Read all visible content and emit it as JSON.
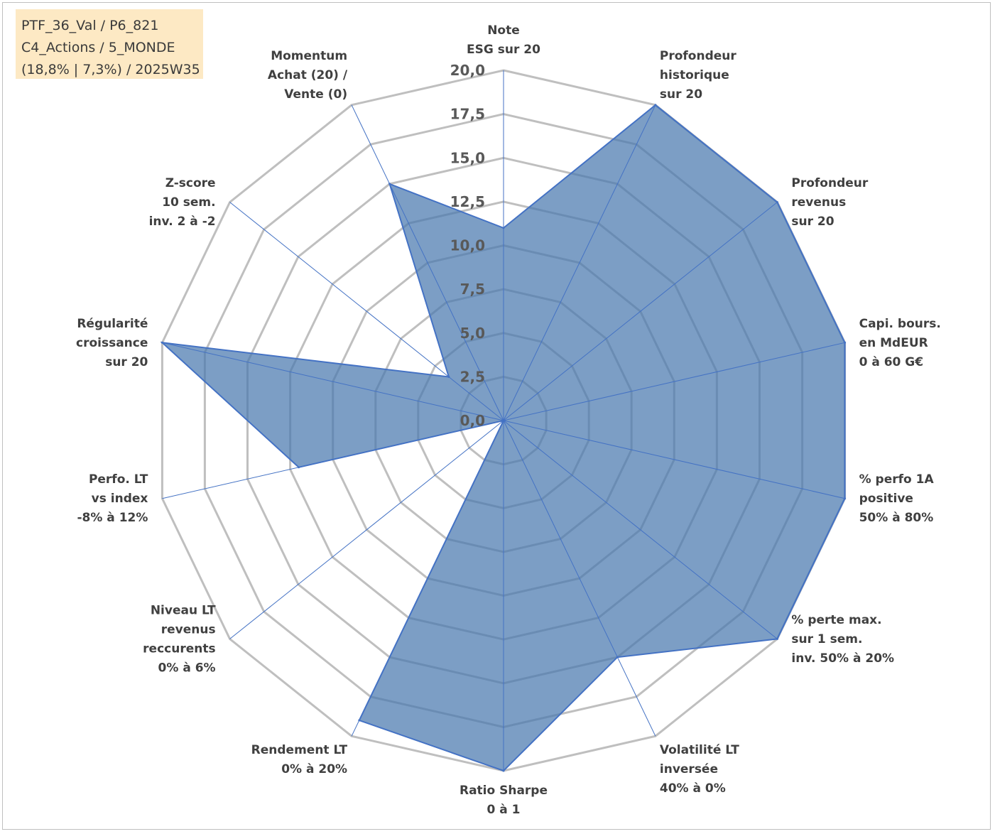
{
  "info_box": {
    "lines": [
      "PTF_36_Val / P6_821",
      "C4_Actions / 5_MONDE",
      "(18,8% | 7,3%) / 2025W35"
    ]
  },
  "chart_data": {
    "type": "radar",
    "title": "",
    "range": [
      0,
      20
    ],
    "tick_labels": [
      "0,0",
      "2,5",
      "5,0",
      "7,5",
      "10,0",
      "12,5",
      "15,0",
      "17,5",
      "20,0"
    ],
    "axes": [
      [
        "Note",
        "ESG sur 20"
      ],
      [
        "Profondeur",
        "historique",
        "sur 20"
      ],
      [
        "Profondeur",
        "revenus",
        "sur 20"
      ],
      [
        "Capi. bours.",
        "en MdEUR",
        "0 à 60 G€"
      ],
      [
        "% perfo 1A",
        "positive",
        "50% à 80%"
      ],
      [
        "% perte max.",
        "sur 1 sem.",
        "inv. 50% à 20%"
      ],
      [
        "Volatilité LT",
        "inversée",
        "40% à 0%"
      ],
      [
        "Ratio Sharpe",
        "0 à 1"
      ],
      [
        "Rendement LT",
        "0% à 20%"
      ],
      [
        "Niveau LT",
        "revenus",
        "reccurents",
        "0% à 6%"
      ],
      [
        "Perfo. LT",
        "vs index",
        "-8% à 12%"
      ],
      [
        "Régularité",
        "croissance",
        "sur 20"
      ],
      [
        "Z-score",
        "10 sem.",
        "inv. 2 à -2"
      ],
      [
        "Momentum",
        "Achat (20) /",
        "Vente (0)"
      ]
    ],
    "series": [
      {
        "values": [
          11.0,
          20.0,
          20.0,
          20.0,
          20.0,
          20.0,
          15.0,
          20.0,
          19.0,
          0.0,
          12.0,
          20.0,
          4.0,
          15.0
        ]
      }
    ],
    "colors": {
      "fill": "#4a79ae",
      "fill_opacity": 0.72,
      "stroke": "#4472c4",
      "grid": "#bfbfbf",
      "spoke": "#4472c4"
    }
  }
}
